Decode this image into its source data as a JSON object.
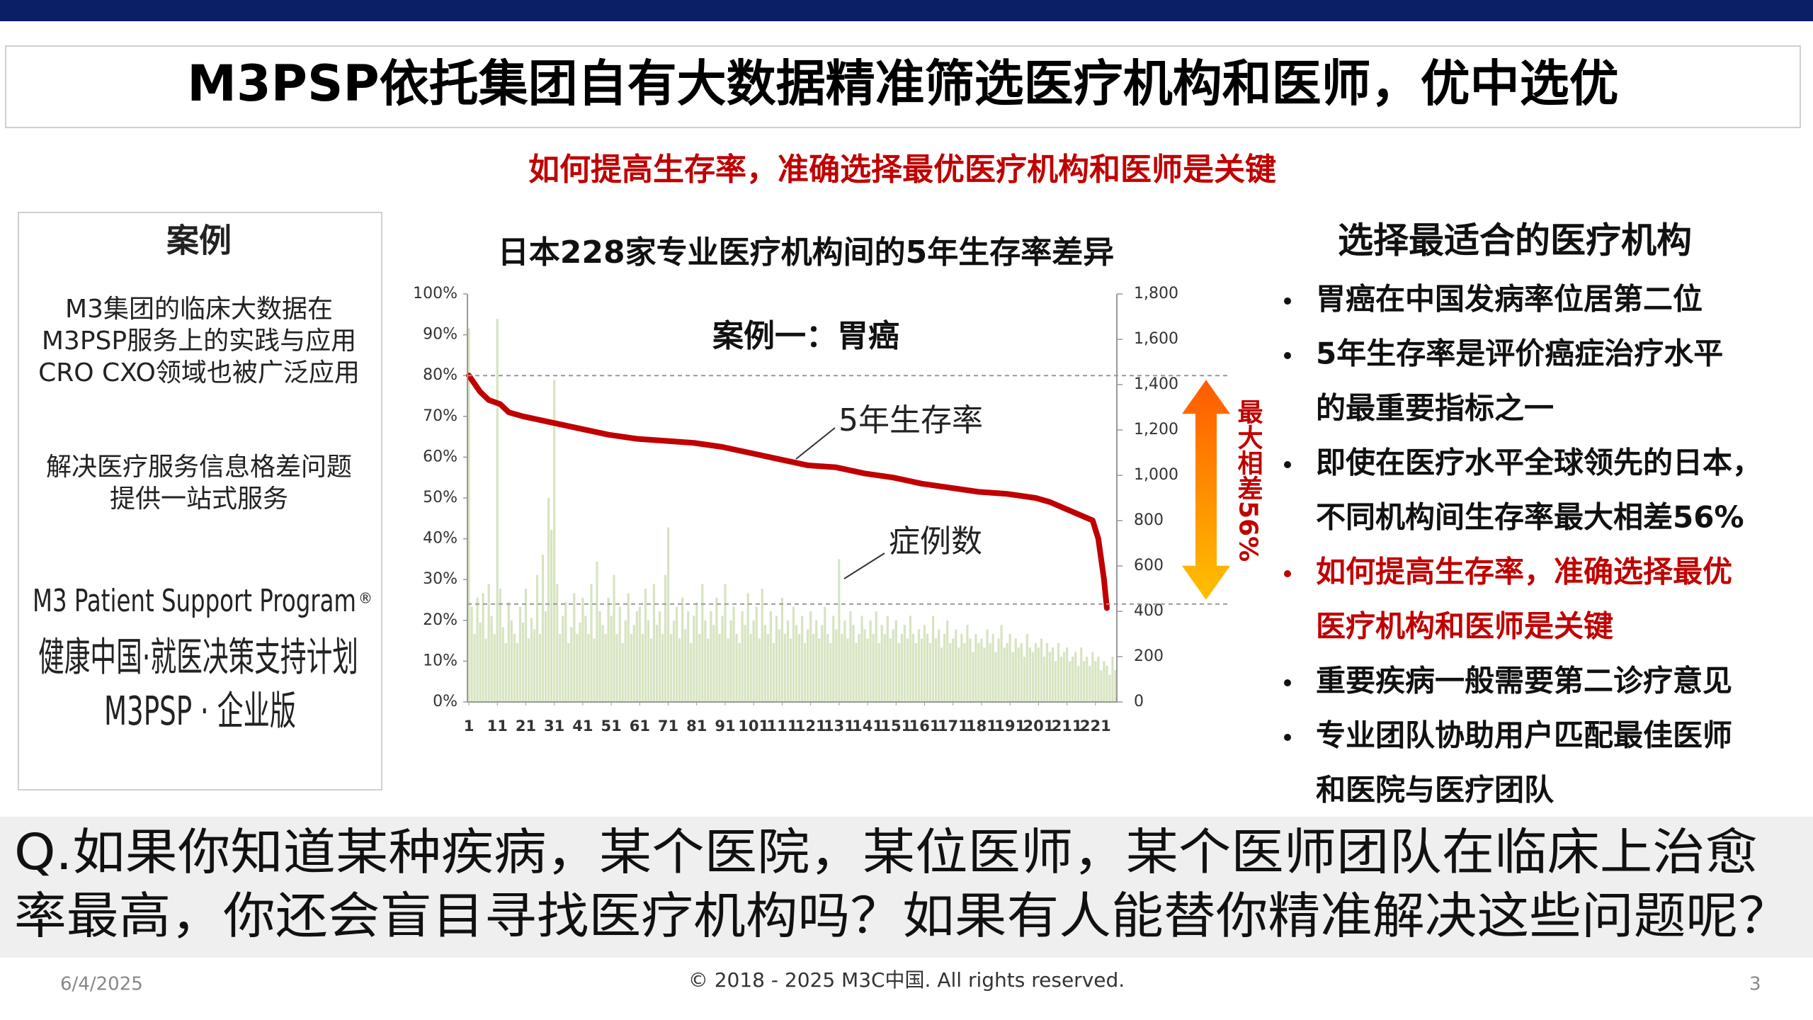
{
  "header": {
    "title": "M3PSP依托集团自有大数据精准筛选医疗机构和医师，优中选优"
  },
  "subtitle": "如何提高生存率，准确选择最优医疗机构和医师是关键",
  "case_panel": {
    "heading": "案例",
    "paragraphs": [
      [
        "M3集团的临床大数据在",
        "M3PSP服务上的实践与应用",
        "CRO CXO领域也被广泛应用"
      ],
      [
        "解决医疗服务信息格差问题",
        "提供一站式服务"
      ]
    ],
    "program": {
      "name": "M3 Patient Support Program",
      "mark": "®",
      "lines": [
        "健康中国·就医决策支持计划",
        "M3PSP · 企业版"
      ]
    }
  },
  "chart_data": {
    "type": "bar_line",
    "title": "日本228家专业医疗机构间的5年生存率差异",
    "annotations": {
      "case_label": "案例一：胃癌",
      "max_diff": "最大相差56%"
    },
    "reference_lines": [
      80,
      24
    ],
    "xlim": [
      0.5,
      228.5
    ],
    "xticks": [
      1,
      11,
      21,
      31,
      41,
      51,
      61,
      71,
      81,
      91,
      101,
      111,
      121,
      131,
      141,
      151,
      161,
      171,
      181,
      191,
      201,
      211,
      221
    ],
    "ylim": [
      0,
      100
    ],
    "yticks": [
      {
        "value": 0,
        "label": "0%"
      },
      {
        "value": 10,
        "label": "10%"
      },
      {
        "value": 20,
        "label": "20%"
      },
      {
        "value": 30,
        "label": "30%"
      },
      {
        "value": 40,
        "label": "40%"
      },
      {
        "value": 50,
        "label": "50%"
      },
      {
        "value": 60,
        "label": "60%"
      },
      {
        "value": 70,
        "label": "70%"
      },
      {
        "value": 80,
        "label": "80%"
      },
      {
        "value": 90,
        "label": "90%"
      },
      {
        "value": 100,
        "label": "100%"
      }
    ],
    "y2lim": [
      0,
      1800
    ],
    "y2ticks": [
      0,
      200,
      400,
      600,
      800,
      {
        "value": 1000,
        "label": "1,000"
      },
      {
        "value": 1200,
        "label": "1,200"
      },
      {
        "value": 1400,
        "label": "1,400"
      },
      {
        "value": 1600,
        "label": "1,600"
      },
      {
        "value": 1800,
        "label": "1,800"
      }
    ],
    "series": [
      {
        "name": "5年生存率",
        "type": "line",
        "color": "#c00000",
        "x": [
          1,
          3,
          5,
          8,
          12,
          15,
          20,
          30,
          40,
          50,
          60,
          70,
          80,
          90,
          100,
          110,
          120,
          130,
          140,
          150,
          160,
          170,
          180,
          190,
          200,
          205,
          210,
          215,
          220,
          222,
          224,
          225
        ],
        "values": [
          80,
          78,
          76,
          74,
          73,
          71,
          70,
          68.5,
          67,
          65.5,
          64.5,
          64,
          63.5,
          62.5,
          61,
          59.5,
          58,
          57.5,
          56,
          55,
          53.5,
          52.5,
          51.5,
          51,
          50,
          49,
          47.5,
          46,
          44.5,
          40,
          30,
          23
        ]
      },
      {
        "name": "症例数",
        "type": "bar",
        "axis": "y2",
        "color": "#d6e4c0",
        "x": [
          1,
          2,
          3,
          4,
          5,
          6,
          7,
          8,
          9,
          10,
          11,
          12,
          13,
          14,
          15,
          16,
          17,
          18,
          19,
          20,
          21,
          22,
          23,
          24,
          25,
          26,
          27,
          28,
          29,
          30,
          31,
          32,
          33,
          34,
          35,
          36,
          37,
          38,
          39,
          40,
          41,
          42,
          43,
          44,
          45,
          46,
          47,
          48,
          49,
          50,
          51,
          52,
          53,
          54,
          55,
          56,
          57,
          58,
          59,
          60,
          61,
          62,
          63,
          64,
          65,
          66,
          67,
          68,
          69,
          70,
          71,
          72,
          73,
          74,
          75,
          76,
          77,
          78,
          79,
          80,
          81,
          82,
          83,
          84,
          85,
          86,
          87,
          88,
          89,
          90,
          91,
          92,
          93,
          94,
          95,
          96,
          97,
          98,
          99,
          100,
          101,
          102,
          103,
          104,
          105,
          106,
          107,
          108,
          109,
          110,
          111,
          112,
          113,
          114,
          115,
          116,
          117,
          118,
          119,
          120,
          121,
          122,
          123,
          124,
          125,
          126,
          127,
          128,
          129,
          130,
          131,
          132,
          133,
          134,
          135,
          136,
          137,
          138,
          139,
          140,
          141,
          142,
          143,
          144,
          145,
          146,
          147,
          148,
          149,
          150,
          151,
          152,
          153,
          154,
          155,
          156,
          157,
          158,
          159,
          160,
          161,
          162,
          163,
          164,
          165,
          166,
          167,
          168,
          169,
          170,
          171,
          172,
          173,
          174,
          175,
          176,
          177,
          178,
          179,
          180,
          181,
          182,
          183,
          184,
          185,
          186,
          187,
          188,
          189,
          190,
          191,
          192,
          193,
          194,
          195,
          196,
          197,
          198,
          199,
          200,
          201,
          202,
          203,
          204,
          205,
          206,
          207,
          208,
          209,
          210,
          211,
          212,
          213,
          214,
          215,
          216,
          217,
          218,
          219,
          220,
          221,
          222,
          223,
          224,
          225,
          226,
          227,
          228
        ],
        "values": [
          1650,
          420,
          300,
          460,
          350,
          480,
          280,
          520,
          380,
          300,
          1690,
          500,
          330,
          260,
          440,
          360,
          300,
          260,
          420,
          350,
          500,
          280,
          370,
          320,
          560,
          300,
          650,
          400,
          900,
          760,
          1420,
          520,
          300,
          380,
          440,
          260,
          330,
          480,
          300,
          350,
          460,
          380,
          300,
          520,
          280,
          620,
          400,
          340,
          300,
          460,
          380,
          560,
          300,
          420,
          260,
          360,
          480,
          300,
          340,
          400,
          420,
          300,
          500,
          360,
          280,
          520,
          340,
          400,
          300,
          560,
          770,
          300,
          360,
          420,
          280,
          460,
          320,
          400,
          260,
          380,
          440,
          300,
          520,
          360,
          280,
          400,
          340,
          460,
          300,
          380,
          520,
          280,
          360,
          420,
          300,
          260,
          400,
          340,
          480,
          300,
          360,
          420,
          280,
          500,
          340,
          300,
          400,
          260,
          380,
          320,
          460,
          300,
          360,
          280,
          420,
          340,
          300,
          380,
          260,
          320,
          400,
          300,
          360,
          280,
          340,
          420,
          300,
          260,
          380,
          320,
          630,
          300,
          360,
          280,
          400,
          340,
          260,
          300,
          380,
          320,
          280,
          360,
          300,
          400,
          260,
          340,
          300,
          380,
          280,
          320,
          360,
          260,
          300,
          340,
          280,
          380,
          300,
          260,
          320,
          280,
          340,
          300,
          260,
          380,
          280,
          320,
          240,
          300,
          360,
          260,
          280,
          320,
          240,
          300,
          260,
          340,
          280,
          220,
          300,
          260,
          280,
          240,
          320,
          260,
          300,
          220,
          280,
          340,
          240,
          260,
          300,
          220,
          280,
          240,
          260,
          200,
          300,
          240,
          220,
          260,
          240,
          280,
          200,
          260,
          220,
          240,
          180,
          260,
          200,
          220,
          240,
          180,
          200,
          220,
          160,
          240,
          180,
          200,
          160,
          220,
          180,
          200,
          140,
          180,
          160,
          120,
          200,
          140
        ]
      }
    ]
  },
  "right_panel": {
    "heading": "选择最适合的医疗机构",
    "highlight_color": "#c00000",
    "bullets": [
      {
        "lines": [
          "胃癌在中国发病率位居第二位"
        ],
        "highlight": false
      },
      {
        "lines": [
          "5年生存率是评价癌症治疗水平",
          "的最重要指标之一"
        ],
        "highlight": false
      },
      {
        "lines": [
          "即使在医疗水平全球领先的日本，",
          "不同机构间生存率最大相差56%"
        ],
        "highlight": false
      },
      {
        "lines": [
          "如何提高生存率，准确选择最优",
          "医疗机构和医师是关键"
        ],
        "highlight": true
      },
      {
        "lines": [
          "重要疾病一般需要第二诊疗意见"
        ],
        "highlight": false
      },
      {
        "lines": [
          "专业团队协助用户匹配最佳医师",
          "和医院与医疗团队"
        ],
        "highlight": false
      }
    ]
  },
  "question": {
    "lines": [
      "Q.如果你知道某种疾病，某个医院，某位医师，某个医师团队在临床上治愈",
      "率最高，你还会盲目寻找医疗机构吗？如果有人能替你精准解决这些问题呢？"
    ]
  },
  "footer": {
    "date": "6/4/2025",
    "copyright": "© 2018 - 2025 M3C中国. All rights reserved.",
    "page": 3
  }
}
